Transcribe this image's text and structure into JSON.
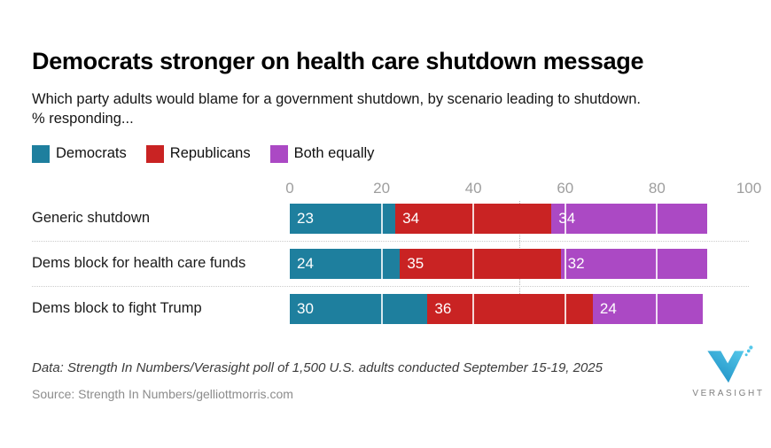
{
  "chart_data": {
    "type": "bar",
    "orientation": "horizontal",
    "stacked": true,
    "title": "Democrats stronger on health care shutdown message",
    "subtitle_lines": [
      "Which party adults would blame for a government shutdown, by scenario leading to shutdown.",
      "% responding..."
    ],
    "categories": [
      "Generic shutdown",
      "Dems block for health care funds",
      "Dems block to fight Trump"
    ],
    "series": [
      {
        "name": "Democrats",
        "color": "#1e7f9e",
        "values": [
          23,
          24,
          30
        ]
      },
      {
        "name": "Republicans",
        "color": "#c92323",
        "values": [
          34,
          35,
          36
        ]
      },
      {
        "name": "Both equally",
        "color": "#ab49c4",
        "values": [
          34,
          32,
          24
        ]
      }
    ],
    "x_ticks": [
      0,
      20,
      40,
      60,
      80,
      100
    ],
    "xlim": [
      0,
      100
    ],
    "reference_line_x": 50,
    "legend_position": "top",
    "grid": "white lines over bars at 20/40/60/80, dotted 50% reference in row gaps",
    "value_labels": "white, inside start of each segment"
  },
  "footer": {
    "data_note": "Data: Strength In Numbers/Verasight poll of 1,500 U.S. adults conducted September 15-19, 2025",
    "source": "Source: Strength In Numbers/gelliottmorris.com",
    "logo_text": "VERASIGHT"
  },
  "colors": {
    "democrats": "#1e7f9e",
    "republicans": "#c92323",
    "both_equally": "#ab49c4",
    "axis_label": "#9e9e9e",
    "separator": "#cccccc",
    "logo_blue_light": "#55c8ea",
    "logo_blue_dark": "#1d8fc4"
  }
}
